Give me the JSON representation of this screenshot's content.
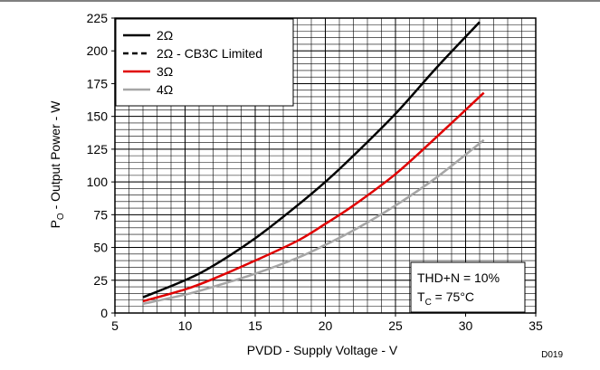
{
  "chart_data": {
    "type": "line",
    "xlabel": "PVDD - Supply Voltage - V",
    "ylabel_main": "P",
    "ylabel_sub": "O",
    "ylabel_rest": " - Output Power - W",
    "xlim": [
      5,
      35
    ],
    "ylim": [
      0,
      225
    ],
    "x_ticks": [
      5,
      10,
      15,
      20,
      25,
      30,
      35
    ],
    "y_ticks": [
      0,
      25,
      50,
      75,
      100,
      125,
      150,
      175,
      200,
      225
    ],
    "grid": true,
    "x_minor_step": 1,
    "y_minor_step": 5,
    "legend_position": "top-left",
    "series": [
      {
        "name": "2Ω",
        "color": "#000000",
        "dash": "solid",
        "x": [
          7,
          10,
          12,
          15,
          18,
          20,
          22,
          25,
          28,
          31
        ],
        "y": [
          12,
          25,
          36,
          57,
          82,
          100,
          120,
          152,
          188,
          222
        ]
      },
      {
        "name": "2Ω - CB3C Limited",
        "color": "#000000",
        "dash": "dashed",
        "x": [],
        "y": []
      },
      {
        "name": "3Ω",
        "color": "#e00000",
        "dash": "solid",
        "x": [
          7,
          10,
          12,
          15,
          18,
          20,
          22,
          25,
          28,
          31.3
        ],
        "y": [
          9,
          18,
          26,
          40,
          55,
          68,
          82,
          106,
          135,
          168
        ]
      },
      {
        "name": "4Ω",
        "color": "#a6a6a6",
        "dash": "solid",
        "x": [
          7,
          10,
          12,
          15,
          18,
          20,
          22,
          25,
          28,
          31.3
        ],
        "y": [
          7,
          14,
          20,
          30,
          42,
          52,
          63,
          82,
          104,
          132
        ]
      }
    ],
    "annotation": {
      "line1": "THD+N = 10%",
      "line2_main": "T",
      "line2_sub": "C",
      "line2_rest": " = 75°C"
    },
    "figure_id": "D019"
  }
}
